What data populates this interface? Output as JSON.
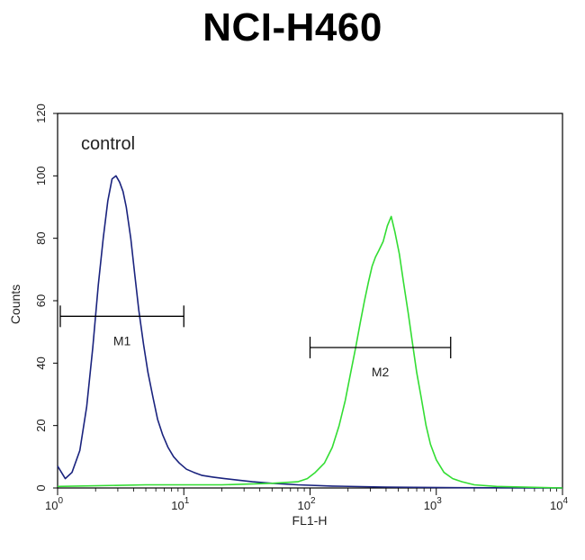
{
  "chart_data": {
    "type": "line",
    "title": "NCI-H460",
    "xlabel": "FL1-H",
    "ylabel": "Counts",
    "x_scale": "log",
    "xlim": [
      1,
      10000
    ],
    "ylim": [
      0,
      120
    ],
    "y_ticks": [
      0,
      20,
      40,
      60,
      80,
      100,
      120
    ],
    "y_tick_labels": [
      "0",
      "20",
      "40",
      "60",
      "80",
      "100",
      "120"
    ],
    "x_ticks": [
      1,
      10,
      100,
      1000,
      10000
    ],
    "x_tick_labels": [
      {
        "base": "10",
        "exp": "0"
      },
      {
        "base": "10",
        "exp": "1"
      },
      {
        "base": "10",
        "exp": "2"
      },
      {
        "base": "10",
        "exp": "3"
      },
      {
        "base": "10",
        "exp": "4"
      }
    ],
    "annotation": "control",
    "gates": [
      {
        "label": "M1",
        "x_start": 1.05,
        "x_end": 10,
        "y": 55
      },
      {
        "label": "M2",
        "x_start": 100,
        "x_end": 1300,
        "y": 45
      }
    ],
    "series": [
      {
        "color": "#1a237e",
        "x": [
          1,
          1.15,
          1.3,
          1.5,
          1.7,
          1.9,
          2.1,
          2.3,
          2.5,
          2.7,
          2.9,
          3.1,
          3.3,
          3.5,
          3.8,
          4.1,
          4.4,
          4.8,
          5.2,
          5.7,
          6.2,
          6.8,
          7.5,
          8.3,
          9.2,
          10.5,
          12,
          14,
          17,
          21,
          27,
          35,
          50,
          80,
          150,
          400,
          1500,
          10000
        ],
        "y": [
          7,
          3,
          5,
          12,
          26,
          45,
          65,
          80,
          92,
          99,
          100,
          98,
          95,
          90,
          80,
          68,
          57,
          46,
          37,
          29,
          22,
          17,
          13,
          10,
          8,
          6,
          5,
          4,
          3.5,
          3,
          2.5,
          2,
          1.5,
          1,
          0.6,
          0.3,
          0.1,
          0
        ]
      },
      {
        "color": "#33dd33",
        "x": [
          1,
          5,
          20,
          50,
          80,
          95,
          110,
          130,
          150,
          170,
          190,
          210,
          230,
          250,
          270,
          290,
          310,
          330,
          350,
          380,
          410,
          440,
          470,
          510,
          550,
          600,
          650,
          700,
          760,
          830,
          900,
          1000,
          1150,
          1350,
          1600,
          2000,
          3000,
          10000
        ],
        "y": [
          0.5,
          1,
          1,
          1.5,
          2,
          3,
          5,
          8,
          13,
          20,
          28,
          37,
          45,
          53,
          60,
          66,
          71,
          74,
          76,
          79,
          84,
          87,
          82,
          75,
          66,
          56,
          46,
          37,
          29,
          20,
          14,
          9,
          5,
          3,
          2,
          1,
          0.5,
          0
        ]
      }
    ]
  }
}
